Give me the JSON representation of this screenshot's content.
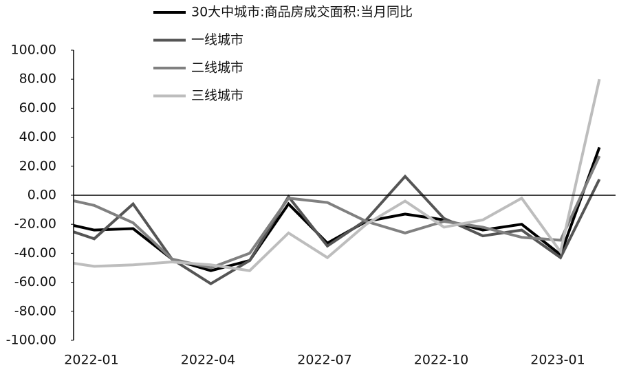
{
  "chart_data": {
    "type": "line",
    "categories": [
      null,
      "2022-01",
      null,
      null,
      "2022-04",
      null,
      null,
      "2022-07",
      null,
      null,
      "2022-10",
      null,
      null,
      "2023-01",
      null
    ],
    "series": [
      {
        "name": "30大中城市:商品房成交面积:当月同比",
        "color": "#000000",
        "values": [
          -18,
          -24,
          -23,
          -44,
          -52,
          -45,
          -6,
          -33,
          -18,
          -13,
          -17,
          -24,
          -20,
          -41,
          33
        ]
      },
      {
        "name": "一线城市",
        "color": "#555555",
        "values": [
          -21,
          -30,
          -6,
          -44,
          -61,
          -45,
          -1,
          -35,
          -17,
          13,
          -16,
          -28,
          -24,
          -43,
          11
        ]
      },
      {
        "name": "二线城市",
        "color": "#808080",
        "values": [
          -1,
          -7,
          -19,
          -44,
          -50,
          -40,
          -2,
          -5,
          -18,
          -26,
          -18,
          -22,
          -29,
          -31,
          27
        ]
      },
      {
        "name": "三线城市",
        "color": "#bdbdbd",
        "values": [
          -45,
          -49,
          -48,
          -46,
          -48,
          -52,
          -26,
          -43,
          -20,
          -4,
          -22,
          -17,
          -2,
          -39,
          80
        ]
      }
    ],
    "ylim": [
      -100,
      100
    ],
    "yticks": [
      {
        "value": 100,
        "label": "100.00"
      },
      {
        "value": 80,
        "label": "80.00"
      },
      {
        "value": 60,
        "label": "60.00"
      },
      {
        "value": 40,
        "label": "40.00"
      },
      {
        "value": 20,
        "label": "20.00"
      },
      {
        "value": 0,
        "label": "0.00"
      },
      {
        "value": -20,
        "label": "-20.00"
      },
      {
        "value": -40,
        "label": "-40.00"
      },
      {
        "value": -60,
        "label": "-60.00"
      },
      {
        "value": -80,
        "label": "-80.00"
      },
      {
        "value": -100,
        "label": "-100.00"
      }
    ],
    "grid": false
  }
}
